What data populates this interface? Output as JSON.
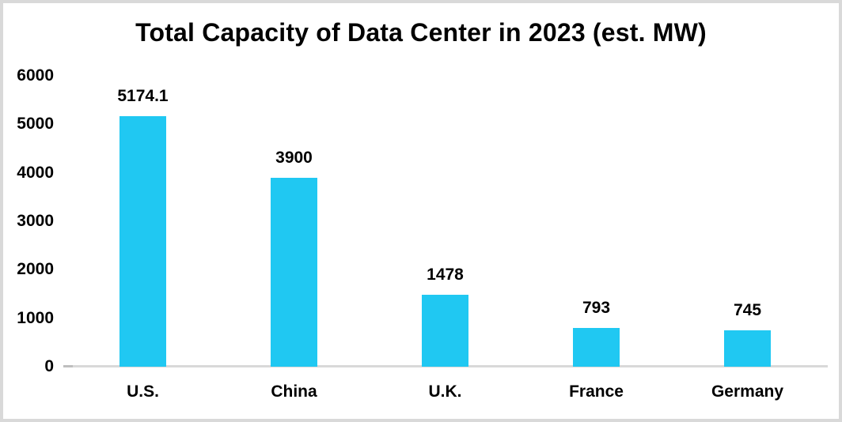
{
  "chart_data": {
    "type": "bar",
    "title": "Total Capacity of Data Center in 2023 (est. MW)",
    "categories": [
      "U.S.",
      "China",
      "U.K.",
      "France",
      "Germany"
    ],
    "values": [
      5174.1,
      3900,
      1478,
      793,
      745
    ],
    "value_labels": [
      "5174.1",
      "3900",
      "1478",
      "793",
      "745"
    ],
    "xlabel": "",
    "ylabel": "",
    "ylim": [
      0,
      6000
    ],
    "yticks": [
      0,
      1000,
      2000,
      3000,
      4000,
      5000,
      6000
    ],
    "grid": false,
    "legend": "none",
    "bar_color": "#20C8F2",
    "axis_line_color": "#D9D9D9",
    "axis_tick_color": "#BFBFBF",
    "text_color": "#000000",
    "frame_border_color": "#D9D9D9",
    "background_color": "#FFFFFF"
  }
}
